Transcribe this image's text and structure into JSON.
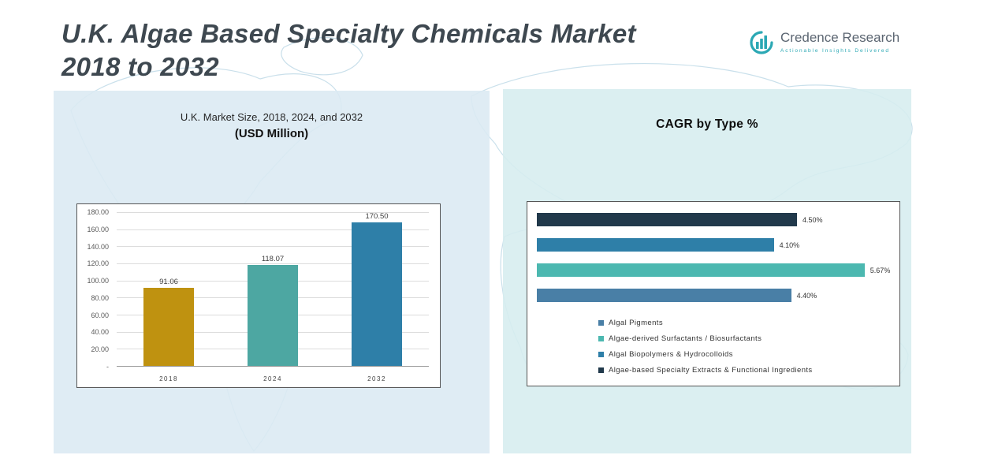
{
  "title": {
    "line1": "U.K. Algae Based Specialty Chemicals Market",
    "line2": "2018 to 2032"
  },
  "logo": {
    "name": "Credence Research",
    "tagline": "Actionable Insights Delivered",
    "accent_color": "#2ba8b4",
    "text_color": "#5b6571"
  },
  "chart_data": [
    {
      "type": "bar",
      "title": "U.K. Market Size, 2018, 2024, and 2032",
      "subtitle": "(USD Million)",
      "categories": [
        "2018",
        "2024",
        "2032"
      ],
      "values": [
        91.06,
        118.07,
        170.5
      ],
      "value_labels": [
        "91.06",
        "118.07",
        "170.50"
      ],
      "bar_colors": [
        "#bf9210",
        "#4da7a2",
        "#2e7fa8"
      ],
      "xlabel": "",
      "ylabel": "",
      "ylim": [
        0,
        180
      ],
      "ytick_labels": [
        "180.00",
        "160.00",
        "140.00",
        "120.00",
        "100.00",
        "80.00",
        "60.00",
        "40.00",
        "20.00",
        "-"
      ],
      "grid": true,
      "legend_position": "none"
    },
    {
      "type": "bar-horizontal",
      "title": "CAGR by Type %",
      "xlim": [
        0,
        6
      ],
      "grid": false,
      "bars": [
        {
          "name": "Algae-based Specialty Extracts & Functional Ingredients",
          "value": 4.5,
          "label": "4.50%",
          "color": "#21394b"
        },
        {
          "name": "Algal Biopolymers & Hydrocolloids",
          "value": 4.1,
          "label": "4.10%",
          "color": "#2e7fa8"
        },
        {
          "name": "Algae-derived Surfactants / Biosurfactants",
          "value": 5.67,
          "label": "5.67%",
          "color": "#4cb8b0"
        },
        {
          "name": "Algal Pigments",
          "value": 4.4,
          "label": "4.40%",
          "color": "#497fa6"
        }
      ],
      "legend_position": "bottom",
      "legend": [
        {
          "label": "Algal Pigments",
          "color": "#497fa6"
        },
        {
          "label": "Algae-derived Surfactants / Biosurfactants",
          "color": "#4cb8b0"
        },
        {
          "label": "Algal Biopolymers & Hydrocolloids",
          "color": "#2e7fa8"
        },
        {
          "label": "Algae-based Specialty Extracts & Functional Ingredients",
          "color": "#21394b"
        }
      ]
    }
  ]
}
